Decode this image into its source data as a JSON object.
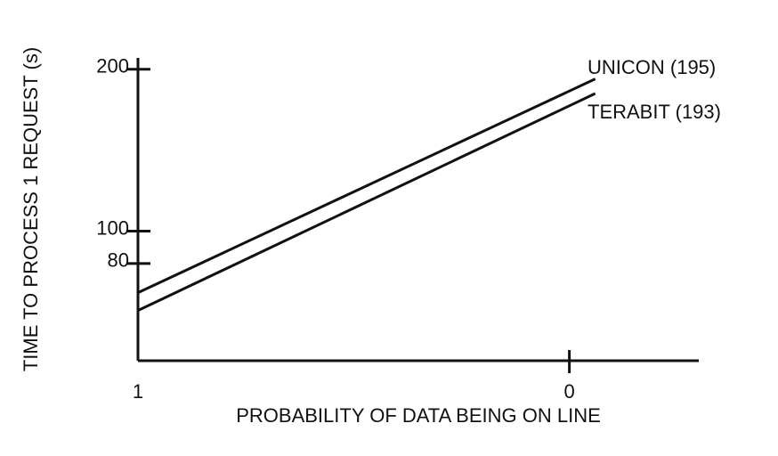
{
  "chart_data": {
    "type": "line",
    "x_label": "PROBABILITY OF DATA BEING ON LINE",
    "y_label": "TIME TO PROCESS 1 REQUEST (s)",
    "x": [
      1,
      -0.06
    ],
    "series": [
      {
        "name": "UNICON (195)",
        "color": "#111111",
        "values": [
          62,
          194
        ]
      },
      {
        "name": "TERABIT (193)",
        "color": "#111111",
        "values": [
          51,
          185
        ]
      }
    ],
    "xlim": [
      1,
      -0.3
    ],
    "xticks": [
      1,
      0
    ],
    "ylim": [
      20,
      207
    ],
    "yticks": [
      200,
      100,
      80
    ]
  }
}
